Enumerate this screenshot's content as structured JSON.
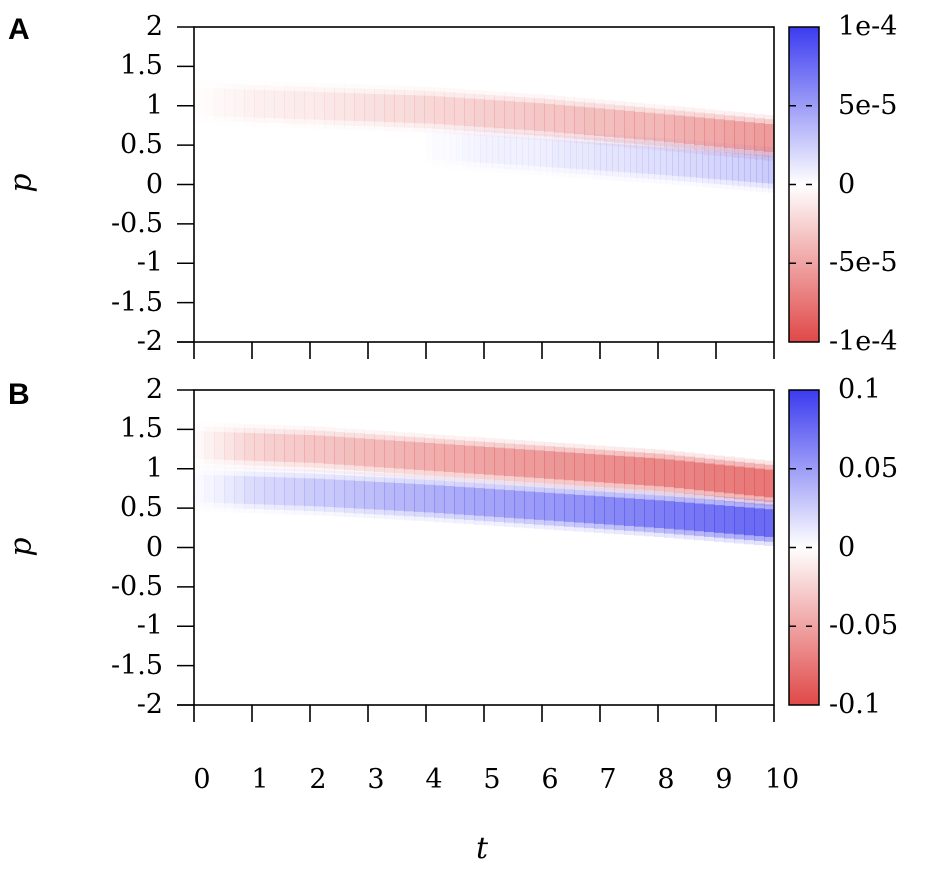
{
  "figure": {
    "panels": [
      {
        "letter": "A",
        "colorbar_ticks": [
          "1e-4",
          "5e-5",
          "0",
          "-5e-5",
          "-1e-4"
        ]
      },
      {
        "letter": "B",
        "colorbar_ticks": [
          "0.1",
          "0.05",
          "0",
          "-0.05",
          "-0.1"
        ]
      }
    ],
    "y_ticks": [
      "2",
      "1.5",
      "1",
      "0.5",
      "0",
      "-0.5",
      "-1",
      "-1.5",
      "-2"
    ],
    "x_ticks": [
      "0",
      "1",
      "2",
      "3",
      "4",
      "5",
      "6",
      "7",
      "8",
      "9",
      "10"
    ],
    "ylabel": "p",
    "xlabel": "t"
  },
  "colors": {
    "positive": "#3b3bf0",
    "negative": "#e04848",
    "zero": "#ffffff",
    "axis": "#000000"
  },
  "chart_data": [
    {
      "type": "heatmap",
      "panel": "A",
      "title": "",
      "xlabel": "t",
      "ylabel": "p",
      "xlim": [
        0,
        10
      ],
      "ylim": [
        -2,
        2
      ],
      "colorbar": {
        "min": -0.0001,
        "max": 0.0001,
        "ticks": [
          0.0001,
          5e-05,
          0,
          -5e-05,
          -0.0001
        ],
        "colormap": "red-white-blue (red negative, blue positive)"
      },
      "features": [
        {
          "name": "negative band",
          "sign": "negative",
          "t": [
            0,
            2,
            4,
            6,
            8,
            10
          ],
          "p_center": [
            1.05,
            1.0,
            0.95,
            0.85,
            0.72,
            0.58
          ],
          "peak_value": [
            -5e-06,
            -1e-05,
            -2e-05,
            -3e-05,
            -4e-05,
            -6e-05
          ]
        },
        {
          "name": "positive band",
          "sign": "positive",
          "t": [
            4,
            6,
            8,
            10
          ],
          "p_center": [
            0.5,
            0.4,
            0.3,
            0.18
          ],
          "peak_value": [
            3e-06,
            8e-06,
            1.5e-05,
            2.5e-05
          ]
        }
      ]
    },
    {
      "type": "heatmap",
      "panel": "B",
      "title": "",
      "xlabel": "t",
      "ylabel": "p",
      "xlim": [
        0,
        10
      ],
      "ylim": [
        -2,
        2
      ],
      "colorbar": {
        "min": -0.1,
        "max": 0.1,
        "ticks": [
          0.1,
          0.05,
          0,
          -0.05,
          -0.1
        ],
        "colormap": "red-white-blue (red negative, blue positive)"
      },
      "features": [
        {
          "name": "negative band",
          "sign": "negative",
          "t": [
            0,
            2,
            4,
            6,
            8,
            10
          ],
          "p_center": [
            1.3,
            1.25,
            1.15,
            1.05,
            0.95,
            0.8
          ],
          "peak_value": [
            -0.015,
            -0.03,
            -0.045,
            -0.06,
            -0.075,
            -0.09
          ]
        },
        {
          "name": "positive band",
          "sign": "positive",
          "t": [
            0,
            2,
            4,
            6,
            8,
            10
          ],
          "p_center": [
            0.75,
            0.7,
            0.62,
            0.52,
            0.42,
            0.3
          ],
          "peak_value": [
            0.01,
            0.025,
            0.04,
            0.055,
            0.075,
            0.095
          ]
        }
      ]
    }
  ]
}
